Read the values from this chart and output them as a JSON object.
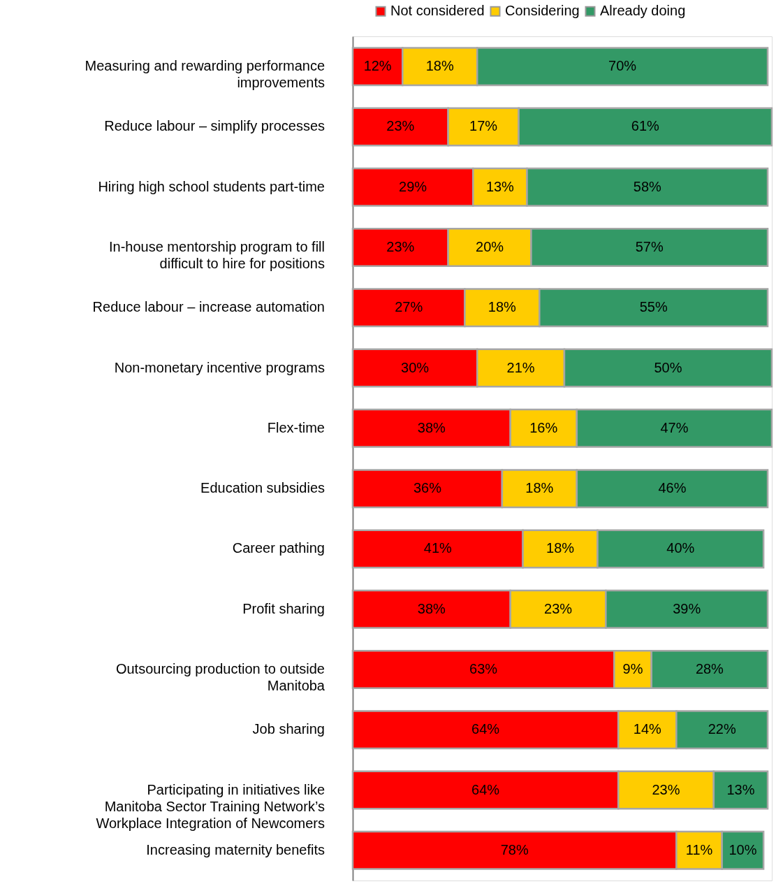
{
  "chart_data": {
    "type": "bar",
    "orientation": "horizontal",
    "stacked": true,
    "legend": "top",
    "categories": [
      "Measuring and rewarding performance improvements",
      "Reduce labour – simplify processes",
      "Hiring high school students part-time",
      "In-house mentorship program to fill difficult to hire for positions",
      "Reduce labour – increase automation",
      "Non-monetary incentive programs",
      "Flex-time",
      "Education subsidies",
      "Career pathing",
      "Profit sharing",
      "Outsourcing production to outside Manitoba",
      "Job sharing",
      "Participating in initiatives like Manitoba Sector Training Network’s Workplace Integration of Newcomers",
      "Increasing maternity benefits"
    ],
    "series": [
      {
        "name": "Not considered",
        "color": "#ff0000",
        "values": [
          12,
          23,
          29,
          23,
          27,
          30,
          38,
          36,
          41,
          38,
          63,
          64,
          64,
          78
        ],
        "value_labels": [
          "12%",
          "23%",
          "29%",
          "23%",
          "27%",
          "30%",
          "38%",
          "36%",
          "41%",
          "38%",
          "63%",
          "64%",
          "64%",
          "78%"
        ]
      },
      {
        "name": "Considering",
        "color": "#ffcc00",
        "values": [
          18,
          17,
          13,
          20,
          18,
          21,
          16,
          18,
          18,
          23,
          9,
          14,
          23,
          11
        ],
        "value_labels": [
          "18%",
          "17%",
          "13%",
          "20%",
          "18%",
          "21%",
          "16%",
          "18%",
          "18%",
          "23%",
          "9%",
          "14%",
          "23%",
          "11%"
        ]
      },
      {
        "name": "Already doing",
        "color": "#339966",
        "values": [
          70,
          61,
          58,
          57,
          55,
          50,
          47,
          46,
          40,
          39,
          28,
          22,
          13,
          10
        ],
        "value_labels": [
          "70%",
          "61%",
          "58%",
          "57%",
          "55%",
          "50%",
          "47%",
          "46%",
          "40%",
          "39%",
          "28%",
          "22%",
          "13%",
          "10%"
        ]
      }
    ]
  }
}
